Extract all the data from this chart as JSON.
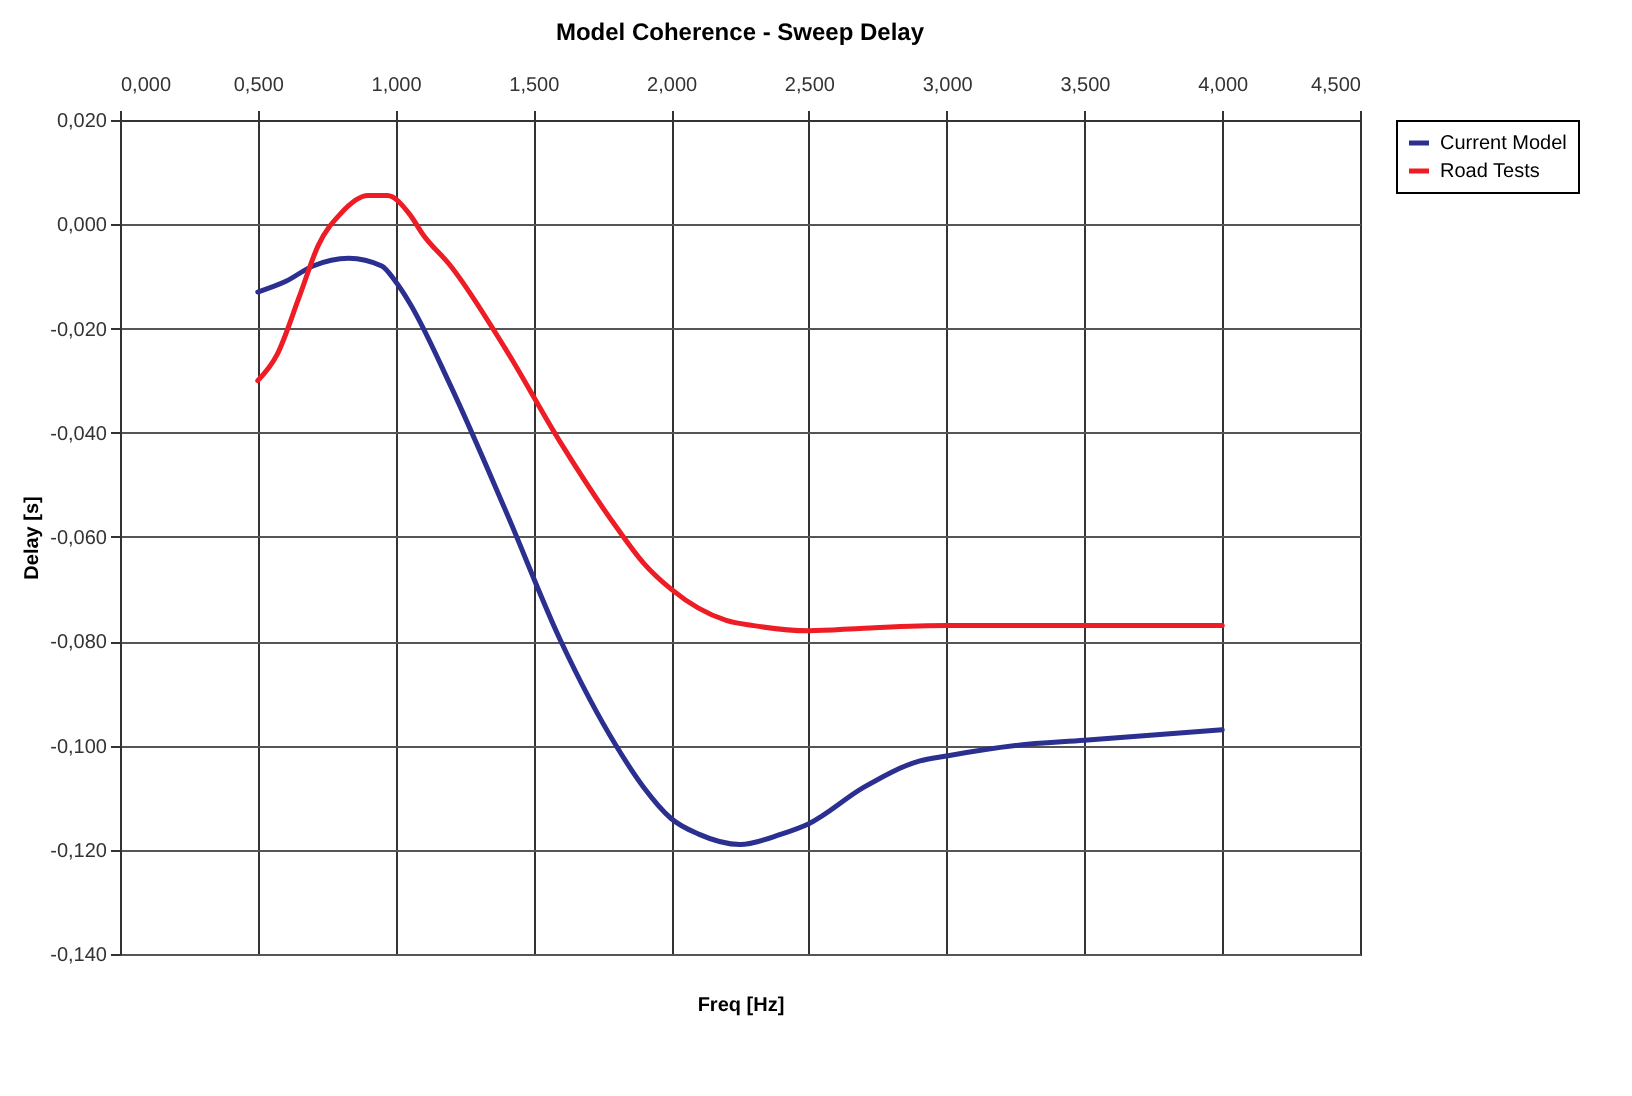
{
  "chart_data": {
    "type": "line",
    "title": "Model Coherence - Sweep Delay",
    "xlabel": "Freq [Hz]",
    "ylabel": "Delay [s]",
    "xlim": [
      0,
      4.5
    ],
    "xticks": [
      {
        "value": 0,
        "label": "0,000"
      },
      {
        "value": 0.5,
        "label": "0,500"
      },
      {
        "value": 1,
        "label": "1,000"
      },
      {
        "value": 1.5,
        "label": "1,500"
      },
      {
        "value": 2,
        "label": "2,000"
      },
      {
        "value": 2.5,
        "label": "2,500"
      },
      {
        "value": 3,
        "label": "3,000"
      },
      {
        "value": 3.5,
        "label": "3,500"
      },
      {
        "value": 4,
        "label": "4,000"
      },
      {
        "value": 4.5,
        "label": "4,500"
      }
    ],
    "ylim": [
      -0.14,
      0.02
    ],
    "yticks": [
      {
        "value": -0.14,
        "label": "-0,140"
      },
      {
        "value": -0.12,
        "label": "-0,120"
      },
      {
        "value": -0.1,
        "label": "-0,100"
      },
      {
        "value": -0.08,
        "label": "-0,080"
      },
      {
        "value": -0.06,
        "label": "-0,060"
      },
      {
        "value": -0.04,
        "label": "-0,040"
      },
      {
        "value": -0.02,
        "label": "-0,020"
      },
      {
        "value": 0,
        "label": "0,000"
      },
      {
        "value": 0.02,
        "label": "0,020"
      }
    ],
    "grid": true,
    "legend": "right",
    "series": [
      {
        "name": "Current Model",
        "color": "#2b2f8f",
        "x": [
          0.5,
          0.6,
          0.7,
          0.83,
          0.95,
          1.0,
          1.05,
          1.2,
          1.4,
          1.6,
          1.8,
          1.9,
          2.0,
          2.1,
          2.25,
          2.4,
          2.5,
          2.7,
          2.9,
          3.0,
          3.25,
          3.5,
          4.0
        ],
        "values": [
          -0.013,
          -0.011,
          -0.008,
          -0.0065,
          -0.008,
          -0.011,
          -0.015,
          -0.031,
          -0.055,
          -0.08,
          -0.1,
          -0.108,
          -0.114,
          -0.117,
          -0.119,
          -0.117,
          -0.115,
          -0.108,
          -0.103,
          -0.102,
          -0.1,
          -0.099,
          -0.097
        ]
      },
      {
        "name": "Road Tests",
        "color": "#ee1c25",
        "x": [
          0.5,
          0.57,
          0.65,
          0.72,
          0.8,
          0.9,
          0.97,
          1.05,
          1.1,
          1.2,
          1.4,
          1.6,
          1.8,
          1.9,
          2.0,
          2.2,
          2.3,
          2.5,
          2.7,
          3.0,
          3.5,
          4.0
        ],
        "values": [
          -0.03,
          -0.025,
          -0.014,
          -0.004,
          0.002,
          0.0055,
          0.0055,
          0.002,
          -0.002,
          -0.008,
          -0.024,
          -0.042,
          -0.058,
          -0.065,
          -0.07,
          -0.076,
          -0.077,
          -0.078,
          -0.0775,
          -0.077,
          -0.077,
          -0.077
        ]
      }
    ]
  }
}
